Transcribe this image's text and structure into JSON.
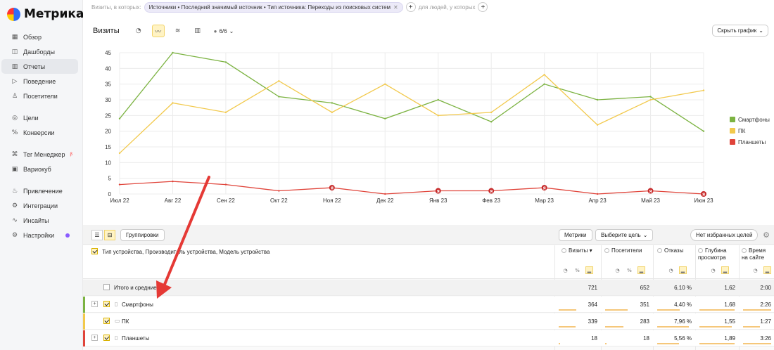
{
  "app": {
    "logo_text": "Метрика"
  },
  "sidebar": {
    "items": [
      {
        "label": "Обзор",
        "icon": "grid-icon",
        "glyph": "▦"
      },
      {
        "label": "Дашборды",
        "icon": "dashboard-icon",
        "glyph": "◫"
      },
      {
        "label": "Отчеты",
        "icon": "reports-icon",
        "glyph": "▥",
        "active": true
      },
      {
        "label": "Поведение",
        "icon": "play-icon",
        "glyph": "▷"
      },
      {
        "label": "Посетители",
        "icon": "user-icon",
        "glyph": "♙"
      },
      {
        "label": "Цели",
        "icon": "target-icon",
        "glyph": "◎"
      },
      {
        "label": "Конверсии",
        "icon": "percent-icon",
        "glyph": "%"
      },
      {
        "label": "Тег Менеджер",
        "icon": "tag-manager-icon",
        "glyph": "⌘",
        "sup": "β"
      },
      {
        "label": "Вариокуб",
        "icon": "variocube-icon",
        "glyph": "▣"
      },
      {
        "label": "Привлечение",
        "icon": "flame-icon",
        "glyph": "♨"
      },
      {
        "label": "Интеграции",
        "icon": "integrations-icon",
        "glyph": "⚙"
      },
      {
        "label": "Инсайты",
        "icon": "insights-icon",
        "glyph": "∿"
      },
      {
        "label": "Настройки",
        "icon": "settings-icon",
        "glyph": "⚙"
      }
    ]
  },
  "filters": {
    "prefix": "Визиты, в которых:",
    "chip": "Источники • Последний значимый источник • Тип источника: Переходы из поисковых систем",
    "people_label": "для людей, у которых"
  },
  "graph": {
    "title": "Визиты",
    "counter": "6/6",
    "hide_button": "Скрыть график"
  },
  "chart_data": {
    "type": "line",
    "categories": [
      "Июл 22",
      "Авг 22",
      "Сен 22",
      "Окт 22",
      "Ноя 22",
      "Дек 22",
      "Янв 23",
      "Фев 23",
      "Мар 23",
      "Апр 23",
      "Май 23",
      "Июн 23"
    ],
    "ylim": [
      0,
      45
    ],
    "yticks": [
      0,
      5,
      10,
      15,
      20,
      25,
      30,
      35,
      40,
      45
    ],
    "grid": true,
    "legend_position": "right",
    "series": [
      {
        "name": "Смартфоны",
        "color": "#7cb342",
        "values": [
          24,
          45,
          42,
          31,
          29,
          24,
          30,
          23,
          35,
          30,
          31,
          20
        ]
      },
      {
        "name": "ПК",
        "color": "#f2c94c",
        "values": [
          13,
          29,
          26,
          36,
          26,
          35,
          25,
          26,
          38,
          22,
          30,
          33
        ]
      },
      {
        "name": "Планшеты",
        "color": "#e0443a",
        "values": [
          3,
          4,
          3,
          1,
          2,
          0,
          1,
          1,
          2,
          0,
          1,
          0
        ]
      }
    ],
    "markers": [
      {
        "category": "Ноя 22",
        "value": 2,
        "label": "Я"
      },
      {
        "category": "Янв 23",
        "value": 1,
        "label": "Я"
      },
      {
        "category": "Фев 23",
        "value": 1,
        "label": "Я"
      },
      {
        "category": "Мар 23",
        "value": 2,
        "label": "Я"
      },
      {
        "category": "Май 23",
        "value": 1,
        "label": "Я"
      },
      {
        "category": "Июн 23",
        "value": 0,
        "label": "Я"
      }
    ]
  },
  "table": {
    "grouping_button": "Группировки",
    "metrics_button": "Метрики",
    "goal_select": "Выберите цель",
    "favorites_button": "Нет избранных целей",
    "dimension_header": "Тип устройства, Производитель устройства, Модель устройства",
    "columns": [
      {
        "label": "Визиты",
        "sorted": "▾"
      },
      {
        "label": "Посетители"
      },
      {
        "label": "Отказы"
      },
      {
        "label": "Глубина просмотра"
      },
      {
        "label": "Время на сайте"
      }
    ],
    "rows": [
      {
        "label": "Итого и средние",
        "values": [
          "721",
          "652",
          "6,10 %",
          "1,62",
          "2:00"
        ],
        "total": true
      },
      {
        "label": "Смартфоны",
        "values": [
          "364",
          "351",
          "4,40 %",
          "1,68",
          "2:26"
        ],
        "color": "#7cb342",
        "icon": "▯",
        "bars": [
          0.5,
          0.54,
          0.72,
          1.0,
          1.0
        ]
      },
      {
        "label": "ПК",
        "values": [
          "339",
          "283",
          "7,96 %",
          "1,55",
          "1:27"
        ],
        "color": "#f2c94c",
        "icon": "▭",
        "bars": [
          0.47,
          0.43,
          1.0,
          0.92,
          0.6
        ]
      },
      {
        "label": "Планшеты",
        "values": [
          "18",
          "18",
          "5,56 %",
          "1,89",
          "3:26"
        ],
        "color": "#e0443a",
        "icon": "▯",
        "bars": [
          0.03,
          0.03,
          0.7,
          1.0,
          1.0
        ]
      }
    ]
  }
}
